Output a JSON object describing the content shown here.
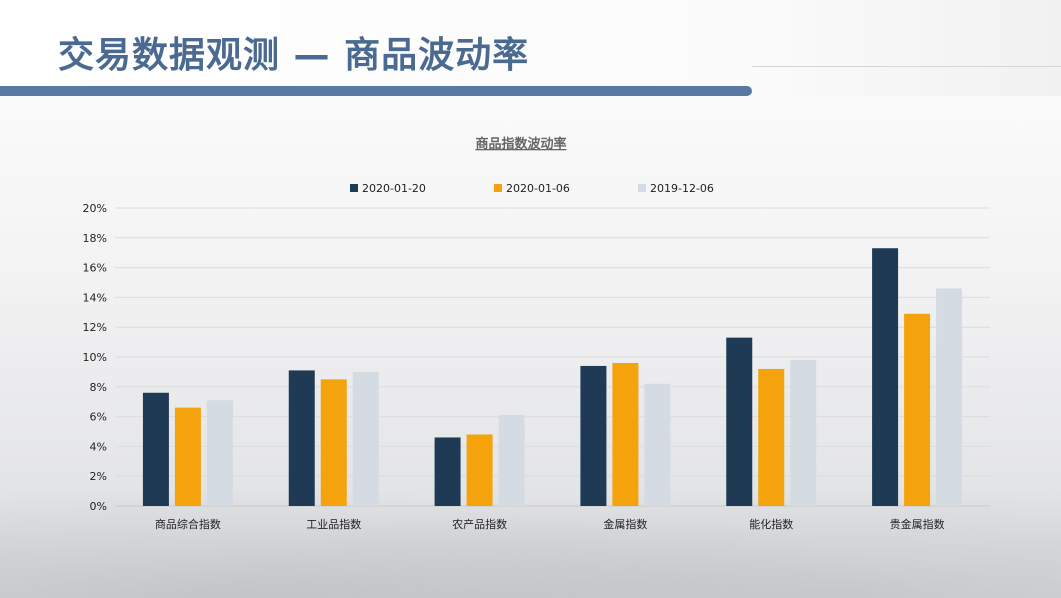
{
  "page": {
    "title": "交易数据观测 — 商品波动率"
  },
  "colors": {
    "title": "#4a6a92",
    "series": [
      "#1f3a55",
      "#f5a30c",
      "#d5dbe3"
    ]
  },
  "chart_data": {
    "type": "bar",
    "title": "商品指数波动率",
    "xlabel": "",
    "ylabel": "",
    "ylim": [
      0,
      20
    ],
    "y_ticks": [
      "0%",
      "2%",
      "4%",
      "6%",
      "8%",
      "10%",
      "12%",
      "14%",
      "16%",
      "18%",
      "20%"
    ],
    "grid": true,
    "legend_position": "top",
    "categories": [
      "商品综合指数",
      "工业品指数",
      "农产品指数",
      "金属指数",
      "能化指数",
      "贵金属指数"
    ],
    "series": [
      {
        "name": "2020-01-20",
        "values": [
          7.6,
          9.1,
          4.6,
          9.4,
          11.3,
          17.3
        ]
      },
      {
        "name": "2020-01-06",
        "values": [
          6.6,
          8.5,
          4.8,
          9.6,
          9.2,
          12.9
        ]
      },
      {
        "name": "2019-12-06",
        "values": [
          7.1,
          9.0,
          6.1,
          8.2,
          9.8,
          14.6
        ]
      }
    ]
  }
}
